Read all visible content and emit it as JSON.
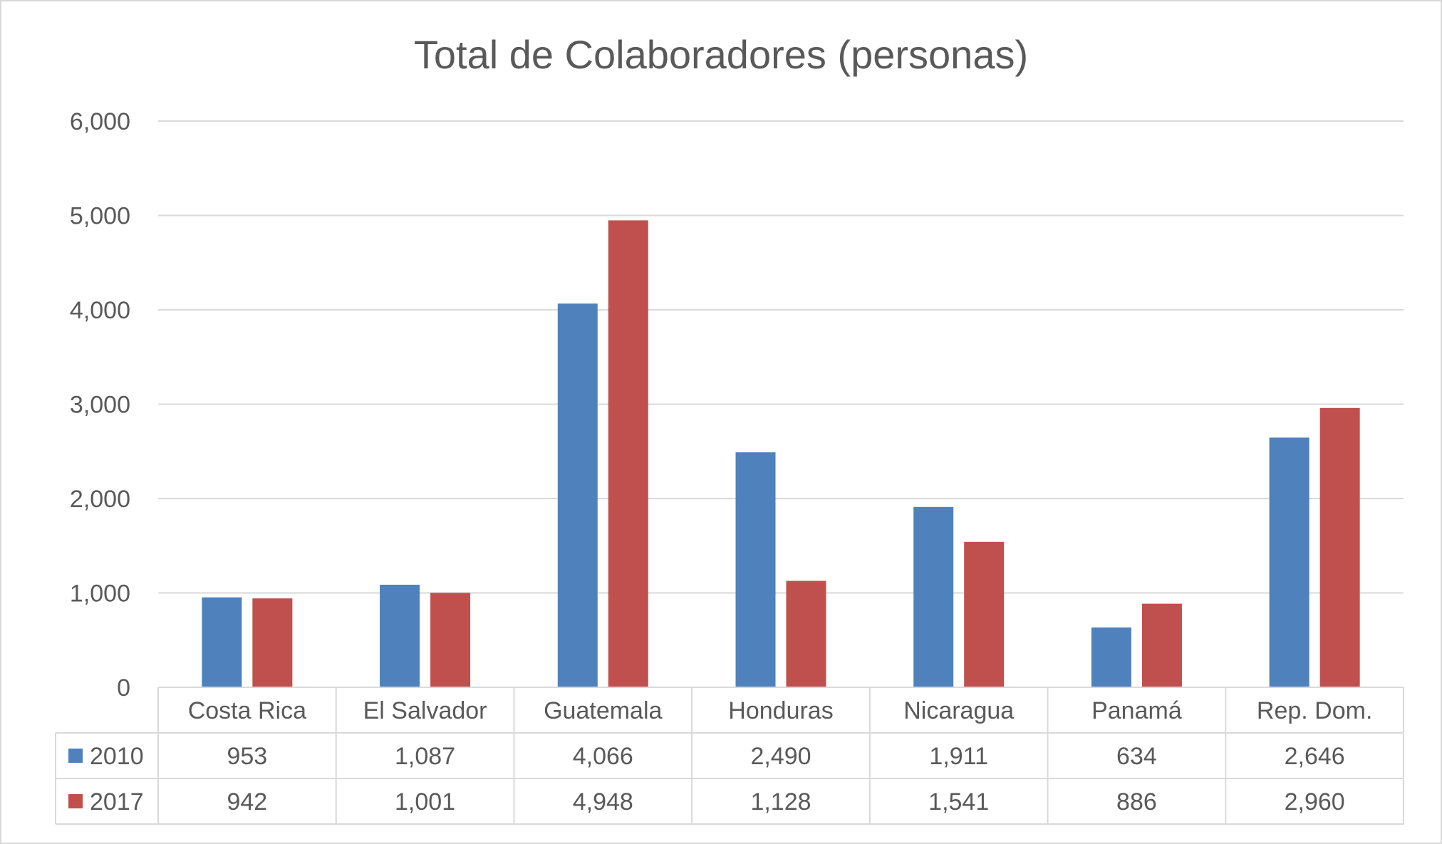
{
  "chart_data": {
    "type": "bar",
    "title": "Total de Colaboradores (personas)",
    "xlabel": "",
    "ylabel": "",
    "ylim": [
      0,
      6000
    ],
    "yticks": [
      0,
      1000,
      2000,
      3000,
      4000,
      5000,
      6000
    ],
    "ytick_labels": [
      "0",
      "1,000",
      "2,000",
      "3,000",
      "4,000",
      "5,000",
      "6,000"
    ],
    "grid": true,
    "legend": "data-table-left",
    "categories": [
      "Costa Rica",
      "El Salvador",
      "Guatemala",
      "Honduras",
      "Nicaragua",
      "Panamá",
      "Rep. Dom."
    ],
    "series": [
      {
        "name": "2010",
        "color": "#4f81bd",
        "values": [
          953,
          1087,
          4066,
          2490,
          1911,
          634,
          2646
        ],
        "labels": [
          "953",
          "1,087",
          "4,066",
          "2,490",
          "1,911",
          "634",
          "2,646"
        ]
      },
      {
        "name": "2017",
        "color": "#c0504d",
        "values": [
          942,
          1001,
          4948,
          1128,
          1541,
          886,
          2960
        ],
        "labels": [
          "942",
          "1,001",
          "4,948",
          "1,128",
          "1,541",
          "886",
          "2,960"
        ]
      }
    ]
  }
}
